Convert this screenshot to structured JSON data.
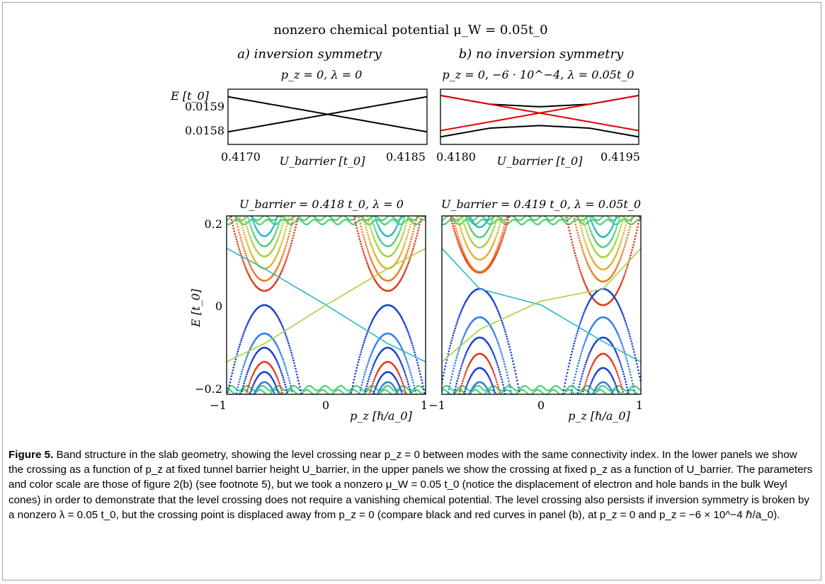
{
  "figure": {
    "main_title": "nonzero chemical potential μ_W = 0.05t_0",
    "panel_a_heading": "a)  inversion symmetry",
    "panel_b_heading": "b)  no inversion symmetry",
    "colors": {
      "black_curve": "#000000",
      "red_curve": "#e00000",
      "frame": "#a0a0a0"
    },
    "colormap": [
      "#1a3fd6",
      "#2f80e8",
      "#2fb7c8",
      "#53d07a",
      "#a6d43a",
      "#e0b22c",
      "#ee7a22",
      "#e03a1a"
    ]
  },
  "chart_data": [
    {
      "id": "upper_left",
      "type": "line",
      "title": "p_z = 0,  λ = 0",
      "xlabel": "U_barrier [t_0]",
      "ylabel": "E [t_0]",
      "xlim": [
        0.4165,
        0.4188
      ],
      "ylim": [
        0.01575,
        0.01597
      ],
      "xticks": [
        "0.4170",
        "0.4185"
      ],
      "yticks": [
        "0.0159",
        "0.0158"
      ],
      "series": [
        {
          "color": "black",
          "x": [
            0.4165,
            0.4188
          ],
          "y": [
            0.01594,
            0.0158
          ]
        },
        {
          "color": "black",
          "x": [
            0.4165,
            0.4188
          ],
          "y": [
            0.0158,
            0.01594
          ]
        }
      ]
    },
    {
      "id": "upper_right",
      "type": "line",
      "title": "p_z = 0, −6 · 10^−4,  λ = 0.05t_0",
      "xlabel": "U_barrier [t_0]",
      "ylabel": "",
      "xlim": [
        0.4176,
        0.4196
      ],
      "ylim": [
        0.01575,
        0.01597
      ],
      "xticks": [
        "0.4180",
        "0.4195"
      ],
      "yticks": [],
      "series": [
        {
          "color": "black",
          "x": [
            0.4176,
            0.4181,
            0.4186,
            0.4191,
            0.4196
          ],
          "y": [
            0.015945,
            0.01591,
            0.0159,
            0.01591,
            0.015945
          ]
        },
        {
          "color": "black",
          "x": [
            0.4176,
            0.4181,
            0.4186,
            0.4191,
            0.4196
          ],
          "y": [
            0.01578,
            0.015815,
            0.015825,
            0.015815,
            0.01578
          ]
        },
        {
          "color": "red",
          "x": [
            0.4176,
            0.4196
          ],
          "y": [
            0.015945,
            0.015805
          ]
        },
        {
          "color": "red",
          "x": [
            0.4176,
            0.4196
          ],
          "y": [
            0.015805,
            0.015945
          ]
        }
      ]
    },
    {
      "id": "lower_left",
      "type": "scatter",
      "title": "U_barrier = 0.418 t_0,  λ = 0",
      "xlabel": "p_z [ℏ/a_0]",
      "ylabel": "E [t_0]",
      "xlim": [
        -1,
        1
      ],
      "ylim": [
        -0.22,
        0.22
      ],
      "xticks": [
        "−1",
        "0",
        "1"
      ],
      "yticks": [
        "0.2",
        "0",
        "−0.2"
      ],
      "cone_centers": [
        -0.62,
        0.62
      ],
      "cone_shift": 0.0,
      "electron_band_minima": [
        0.035,
        0.06,
        0.09,
        0.12,
        0.145,
        0.17
      ],
      "hole_band_maxima": [
        0.0,
        -0.07,
        -0.105,
        -0.14,
        -0.165,
        -0.19
      ],
      "surface_bands": [
        {
          "p": [
            -1,
            -0.62,
            0,
            0.62,
            1
          ],
          "E": [
            0.14,
            0.09,
            0.0,
            -0.095,
            -0.14
          ]
        },
        {
          "p": [
            -1,
            -0.62,
            0,
            0.62,
            1
          ],
          "E": [
            -0.14,
            -0.095,
            0.0,
            0.09,
            0.14
          ]
        }
      ]
    },
    {
      "id": "lower_right",
      "type": "scatter",
      "title": "U_barrier = 0.419 t_0,  λ = 0.05t_0",
      "xlabel": "p_z [ℏ/a_0]",
      "ylabel": "",
      "xlim": [
        -1,
        1
      ],
      "ylim": [
        -0.22,
        0.22
      ],
      "xticks": [
        "−1",
        "0",
        "1"
      ],
      "yticks": [],
      "cone_centers": [
        -0.62,
        0.62
      ],
      "cone_shift": 0.04,
      "electron_band_minima": [
        0.04,
        0.07,
        0.1,
        0.13,
        0.155,
        0.18
      ],
      "hole_band_maxima": [
        0.04,
        -0.03,
        -0.08,
        -0.12,
        -0.155,
        -0.19
      ],
      "surface_bands": [
        {
          "p": [
            -1,
            -0.62,
            0,
            0.62,
            1
          ],
          "E": [
            0.14,
            0.04,
            0.0,
            -0.09,
            -0.14
          ]
        },
        {
          "p": [
            -1,
            -0.62,
            0,
            0.62,
            1
          ],
          "E": [
            -0.14,
            -0.06,
            0.01,
            0.04,
            0.14
          ]
        }
      ]
    }
  ],
  "caption": {
    "label": "Figure 5.",
    "text": " Band structure in the slab geometry, showing the level crossing near p_z = 0 between modes with the same connectivity index. In the lower panels we show the crossing as a function of p_z at fixed tunnel barrier height U_barrier, in the upper panels we show the crossing at fixed p_z as a function of U_barrier. The parameters and color scale are those of figure 2(b) (see footnote 5), but we took a nonzero μ_W = 0.05 t_0 (notice the displacement of electron and hole bands in the bulk Weyl cones) in order to demonstrate that the level crossing does not require a vanishing chemical potential. The level crossing also persists if inversion symmetry is broken by a nonzero λ = 0.05 t_0, but the crossing point is displaced away from p_z = 0 (compare black and red curves in panel (b), at p_z = 0 and p_z = −6 × 10^−4 ℏ/a_0)."
  }
}
